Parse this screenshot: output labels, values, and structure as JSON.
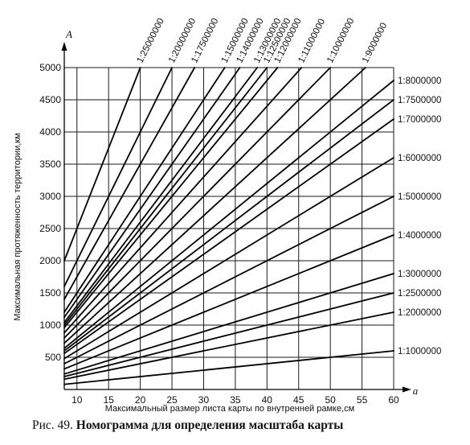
{
  "caption": {
    "number": "Рис. 49.",
    "title": "Номограмма для определения масштаба карты"
  },
  "chart_data": {
    "type": "line",
    "xlabel": "Максимальный размер листа карты по внутренней рамке,см",
    "ylabel": "Максимальная протяженность территории,км",
    "x_axis_letter": "a",
    "y_axis_letter": "A",
    "xlim": [
      8,
      60
    ],
    "ylim": [
      0,
      5000
    ],
    "x_ticks": [
      10,
      15,
      20,
      25,
      30,
      35,
      40,
      45,
      50,
      55,
      60
    ],
    "y_ticks": [
      500,
      1000,
      1500,
      2000,
      2500,
      3000,
      3500,
      4000,
      4500,
      5000
    ],
    "grid": true,
    "relation": "A = a × denominator / 100000",
    "series": [
      {
        "name": "1:1000000",
        "denominator": 1000000
      },
      {
        "name": "1:2000000",
        "denominator": 2000000
      },
      {
        "name": "1:2500000",
        "denominator": 2500000
      },
      {
        "name": "1:3000000",
        "denominator": 3000000
      },
      {
        "name": "1:4000000",
        "denominator": 4000000
      },
      {
        "name": "1:5000000",
        "denominator": 5000000
      },
      {
        "name": "1:6000000",
        "denominator": 6000000
      },
      {
        "name": "1:7000000",
        "denominator": 7000000
      },
      {
        "name": "1:7500000",
        "denominator": 7500000
      },
      {
        "name": "1:8000000",
        "denominator": 8000000
      },
      {
        "name": "1:9000000",
        "denominator": 9000000
      },
      {
        "name": "1:10000000",
        "denominator": 10000000
      },
      {
        "name": "1:11000000",
        "denominator": 11000000
      },
      {
        "name": "1:12000000",
        "denominator": 12000000
      },
      {
        "name": "1:12500000",
        "denominator": 12500000
      },
      {
        "name": "1:13000000",
        "denominator": 13000000
      },
      {
        "name": "1:14000000",
        "denominator": 14000000
      },
      {
        "name": "1:15000000",
        "denominator": 15000000
      },
      {
        "name": "1:17500000",
        "denominator": 17500000
      },
      {
        "name": "1:20000000",
        "denominator": 20000000
      },
      {
        "name": "1:25000000",
        "denominator": 25000000
      }
    ]
  }
}
